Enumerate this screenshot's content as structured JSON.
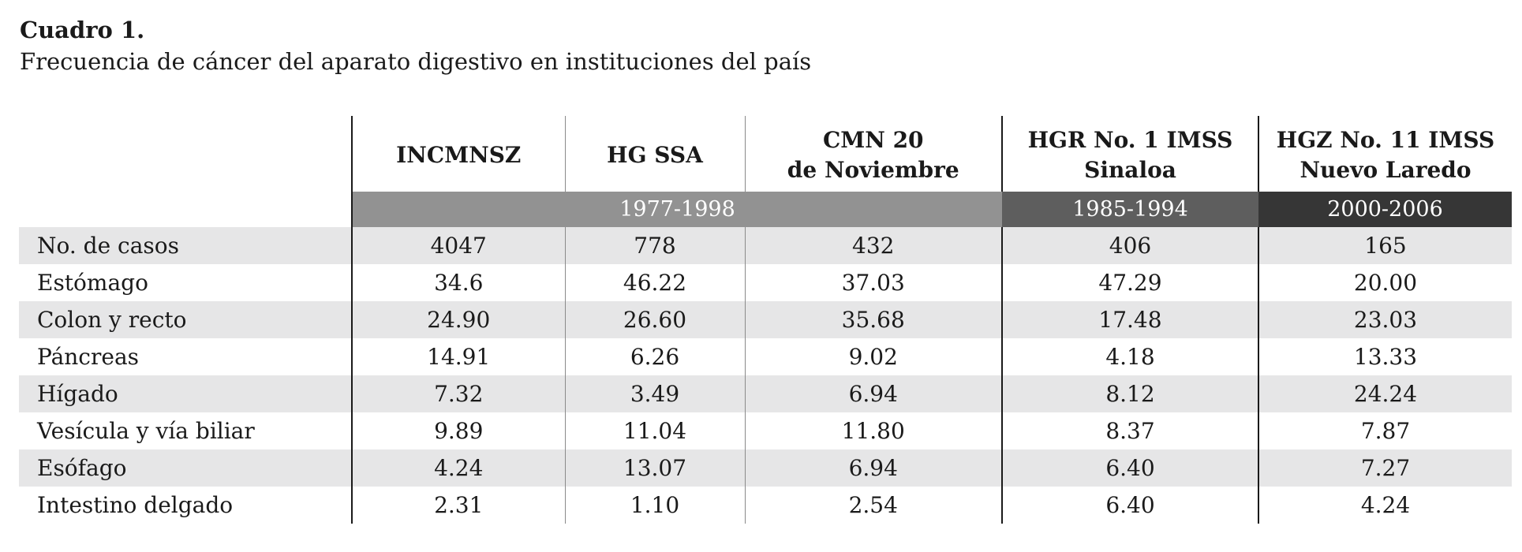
{
  "caption": {
    "title": "Cuadro 1.",
    "subtitle": "Frecuencia de cáncer del aparato digestivo en instituciones del país"
  },
  "table": {
    "columns": [
      {
        "line1": "INCMNSZ",
        "line2": ""
      },
      {
        "line1": "HG SSA",
        "line2": ""
      },
      {
        "line1": "CMN 20",
        "line2": "de Noviembre"
      },
      {
        "line1": "HGR No. 1 IMSS",
        "line2": "Sinaloa"
      },
      {
        "line1": "HGZ No. 11 IMSS",
        "line2": "Nuevo Laredo"
      }
    ],
    "periods": [
      "1977-1998",
      "1985-1994",
      "2000-2006"
    ],
    "rows": [
      {
        "label": "No. de casos",
        "values": [
          "4047",
          "778",
          "432",
          "406",
          "165"
        ]
      },
      {
        "label": "Estómago",
        "values": [
          "34.6",
          "46.22",
          "37.03",
          "47.29",
          "20.00"
        ]
      },
      {
        "label": "Colon y recto",
        "values": [
          "24.90",
          "26.60",
          "35.68",
          "17.48",
          "23.03"
        ]
      },
      {
        "label": "Páncreas",
        "values": [
          "14.91",
          "6.26",
          "9.02",
          "4.18",
          "13.33"
        ]
      },
      {
        "label": "Hígado",
        "values": [
          "7.32",
          "3.49",
          "6.94",
          "8.12",
          "24.24"
        ]
      },
      {
        "label": "Vesícula y vía biliar",
        "values": [
          "9.89",
          "11.04",
          "11.80",
          "8.37",
          "7.87"
        ]
      },
      {
        "label": "Esófago",
        "values": [
          "4.24",
          "13.07",
          "6.94",
          "6.40",
          "7.27"
        ]
      },
      {
        "label": "Intestino delgado",
        "values": [
          "2.31",
          "1.10",
          "2.54",
          "6.40",
          "4.24"
        ]
      }
    ]
  }
}
